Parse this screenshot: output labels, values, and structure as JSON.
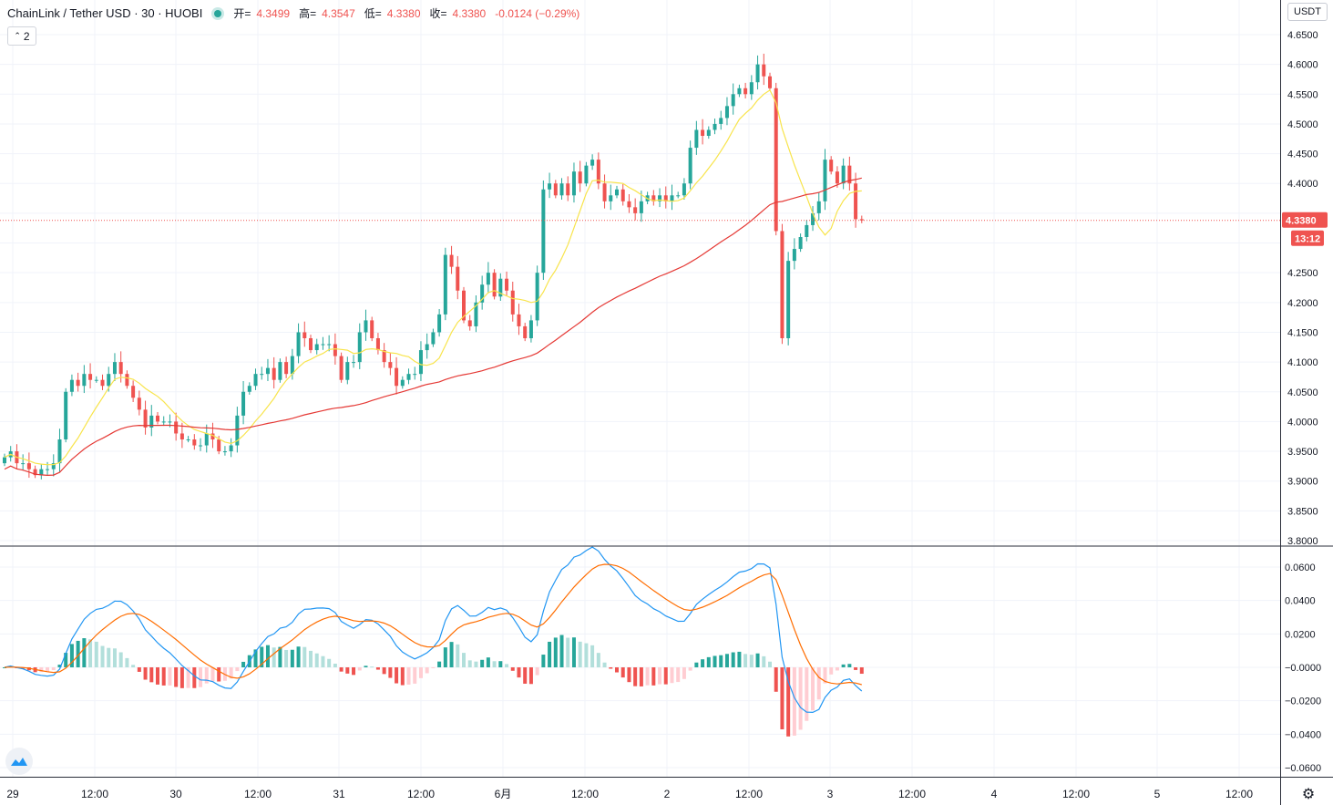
{
  "header": {
    "symbol": "ChainLink / Tether USD · 30 · HUOBI",
    "open_label": "开=",
    "open_value": "4.3499",
    "high_label": "高=",
    "high_value": "4.3547",
    "low_label": "低=",
    "low_value": "4.3380",
    "close_label": "收=",
    "close_value": "4.3380",
    "change": "-0.0124 (−0.29%)",
    "collapse_count": "2",
    "currency": "USDT"
  },
  "price_axis": {
    "labels": [
      "4.6500",
      "4.6000",
      "4.5500",
      "4.5000",
      "4.4500",
      "4.4000",
      "4.2500",
      "4.2000",
      "4.1500",
      "4.1000",
      "4.0500",
      "4.0000",
      "3.9500",
      "3.9000",
      "3.8500",
      "3.8000"
    ],
    "last_price": "4.3380",
    "countdown": "13:12"
  },
  "macd_axis": {
    "labels": [
      "0.0600",
      "0.0400",
      "0.0200",
      "−0.0000",
      "−0.0200",
      "−0.0400",
      "−0.0600"
    ]
  },
  "time_axis": {
    "labels": [
      "29",
      "12:00",
      "30",
      "12:00",
      "31",
      "12:00",
      "6月",
      "12:00",
      "2",
      "12:00",
      "3",
      "12:00",
      "4",
      "12:00",
      "5",
      "12:00"
    ]
  },
  "colors": {
    "up": "#26a69a",
    "down": "#ef5350",
    "ma_fast": "#f8e44b",
    "ma_slow": "#e53935",
    "macd_line": "#2196f3",
    "signal_line": "#ff6d00",
    "hist_up_strong": "#26a69a",
    "hist_up_weak": "#b2dfdb",
    "hist_down_strong": "#ef5350",
    "hist_down_weak": "#ffcdd2",
    "grid": "#f0f3fa"
  },
  "chart_data": [
    {
      "type": "candlestick",
      "title": "ChainLink / Tether USD · 30 · HUOBI",
      "ylim": [
        3.8,
        4.7
      ],
      "x_start": "2020-05-29 00:00",
      "interval_minutes": 30,
      "closes": [
        3.94,
        3.95,
        3.93,
        3.93,
        3.92,
        3.91,
        3.92,
        3.92,
        3.93,
        3.97,
        4.05,
        4.07,
        4.06,
        4.08,
        4.07,
        4.07,
        4.06,
        4.08,
        4.1,
        4.08,
        4.06,
        4.04,
        4.02,
        3.99,
        4.01,
        4.0,
        4.0,
        4.0,
        3.98,
        3.97,
        3.97,
        3.96,
        3.96,
        3.98,
        3.97,
        3.95,
        3.95,
        3.96,
        4.01,
        4.05,
        4.06,
        4.08,
        4.08,
        4.09,
        4.07,
        4.1,
        4.08,
        4.11,
        4.15,
        4.14,
        4.12,
        4.13,
        4.13,
        4.13,
        4.11,
        4.07,
        4.1,
        4.1,
        4.15,
        4.17,
        4.14,
        4.12,
        4.1,
        4.09,
        4.06,
        4.07,
        4.08,
        4.08,
        4.12,
        4.13,
        4.15,
        4.18,
        4.28,
        4.26,
        4.22,
        4.17,
        4.16,
        4.2,
        4.23,
        4.25,
        4.21,
        4.24,
        4.22,
        4.18,
        4.16,
        4.14,
        4.17,
        4.25,
        4.39,
        4.4,
        4.38,
        4.4,
        4.38,
        4.42,
        4.4,
        4.43,
        4.44,
        4.4,
        4.37,
        4.38,
        4.39,
        4.37,
        4.36,
        4.35,
        4.37,
        4.38,
        4.37,
        4.38,
        4.37,
        4.38,
        4.38,
        4.4,
        4.46,
        4.49,
        4.48,
        4.49,
        4.5,
        4.51,
        4.53,
        4.55,
        4.56,
        4.55,
        4.57,
        4.6,
        4.58,
        4.56,
        4.32,
        4.14,
        4.27,
        4.29,
        4.31,
        4.33,
        4.35,
        4.37,
        4.44,
        4.42,
        4.4,
        4.43,
        4.4,
        4.34,
        4.338
      ],
      "ma_fast_period": 9,
      "ma_slow_period": 60
    },
    {
      "type": "macd",
      "ylim": [
        -0.066,
        0.066
      ],
      "series": [
        {
          "name": "",
          "role": "macd"
        },
        {
          "name": "",
          "role": "signal"
        },
        {
          "name": "",
          "role": "histogram"
        }
      ]
    }
  ]
}
